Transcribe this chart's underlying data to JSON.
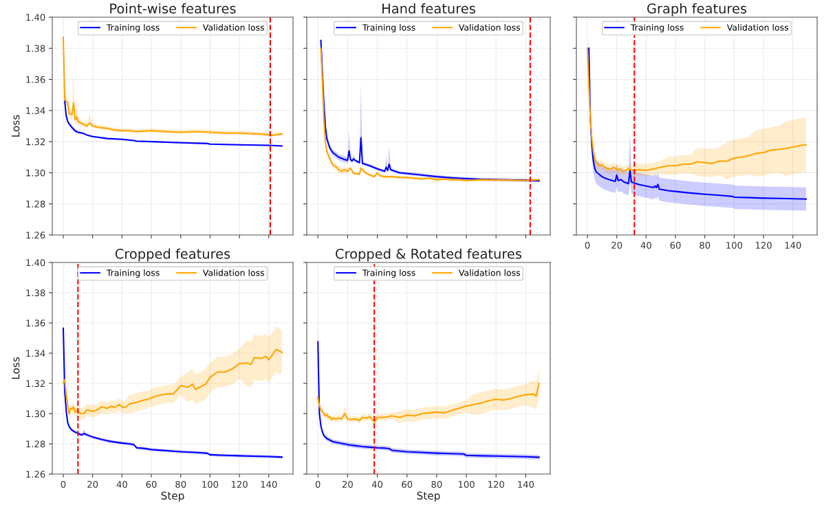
{
  "chart_data": [
    {
      "type": "line",
      "title": "Point-wise features",
      "ylabel": "Loss",
      "xlim": [
        -7.5,
        156.5
      ],
      "xticks": [
        {
          "value": 0,
          "label": null
        },
        {
          "value": 20,
          "label": null
        },
        {
          "value": 40,
          "label": null
        },
        {
          "value": 60,
          "label": null
        },
        {
          "value": 80,
          "label": null
        },
        {
          "value": 100,
          "label": null
        },
        {
          "value": 120,
          "label": null
        },
        {
          "value": 140,
          "label": null
        }
      ],
      "ylim": [
        1.26,
        1.4
      ],
      "yticks": [
        1.26,
        1.28,
        {
          "value": 1.3,
          "label": "1.30"
        },
        1.32,
        1.34,
        1.36,
        1.38,
        {
          "value": 1.4,
          "label": "1.40"
        }
      ],
      "tick_labels": "y",
      "grid": true,
      "legend": "top",
      "line_style": "solid",
      "ref_lines": [
        {
          "axis": "x",
          "value": 141,
          "color": "#ff0000",
          "line_style": "dashed"
        }
      ],
      "series": [
        {
          "name": "Training loss",
          "color": "#0000ff",
          "x": [
            1,
            2,
            3,
            4,
            6,
            8,
            10,
            13,
            16,
            20,
            30,
            40,
            48,
            50,
            60,
            80,
            98,
            100,
            120,
            140,
            149
          ],
          "values": [
            1.346,
            1.3366,
            1.333,
            1.3314,
            1.329,
            1.327,
            1.326,
            1.3255,
            1.3243,
            1.3233,
            1.322,
            1.3215,
            1.3207,
            1.3203,
            1.32,
            1.3193,
            1.3188,
            1.3184,
            1.318,
            1.3176,
            1.3172
          ],
          "lower": [
            1.345,
            1.3356,
            1.332,
            1.3304,
            1.328,
            1.326,
            1.325,
            1.325,
            1.3238,
            1.3228,
            1.3215,
            1.321,
            1.3202,
            1.3198,
            1.3195,
            1.3188,
            1.3183,
            1.3179,
            1.3175,
            1.3171,
            1.3167
          ],
          "upper": [
            1.347,
            1.3376,
            1.334,
            1.3324,
            1.33,
            1.328,
            1.327,
            1.326,
            1.3248,
            1.3238,
            1.3225,
            1.322,
            1.3212,
            1.3208,
            1.3205,
            1.3198,
            1.3193,
            1.3189,
            1.3185,
            1.3181,
            1.3177
          ]
        },
        {
          "name": "Validation loss",
          "color": "#ffa500",
          "x": [
            0,
            1,
            2,
            3,
            4,
            5,
            6,
            7,
            8,
            9,
            10,
            12,
            14,
            16,
            18,
            20,
            25,
            30,
            35,
            40,
            45,
            50,
            60,
            70,
            80,
            90,
            100,
            110,
            120,
            130,
            140,
            142,
            149
          ],
          "values": [
            1.387,
            1.347,
            1.346,
            1.345,
            1.338,
            1.3375,
            1.3375,
            1.345,
            1.334,
            1.336,
            1.333,
            1.332,
            1.331,
            1.33,
            1.332,
            1.33,
            1.329,
            1.3285,
            1.3275,
            1.327,
            1.327,
            1.3265,
            1.327,
            1.3265,
            1.326,
            1.3265,
            1.326,
            1.3255,
            1.3255,
            1.325,
            1.3245,
            1.324,
            1.325
          ],
          "lower": [
            1.384,
            1.344,
            1.343,
            1.342,
            1.335,
            1.3345,
            1.3345,
            1.342,
            1.331,
            1.333,
            1.33,
            1.331,
            1.33,
            1.329,
            1.331,
            1.329,
            1.328,
            1.3275,
            1.3265,
            1.326,
            1.326,
            1.3255,
            1.326,
            1.3255,
            1.325,
            1.3255,
            1.325,
            1.3245,
            1.3245,
            1.324,
            1.3235,
            1.323,
            1.324
          ],
          "upper": [
            1.39,
            1.35,
            1.35,
            1.349,
            1.342,
            1.3415,
            1.3415,
            1.367,
            1.338,
            1.344,
            1.337,
            1.334,
            1.333,
            1.332,
            1.338,
            1.332,
            1.3305,
            1.33,
            1.329,
            1.3285,
            1.3285,
            1.328,
            1.3285,
            1.328,
            1.3275,
            1.328,
            1.3275,
            1.327,
            1.327,
            1.3265,
            1.326,
            1.3255,
            1.3265
          ]
        }
      ]
    },
    {
      "type": "line",
      "title": "Hand features",
      "xlim": [
        -7.5,
        156.5
      ],
      "xticks": [
        {
          "value": 0,
          "label": null
        },
        {
          "value": 20,
          "label": null
        },
        {
          "value": 40,
          "label": null
        },
        {
          "value": 60,
          "label": null
        },
        {
          "value": 80,
          "label": null
        },
        {
          "value": 100,
          "label": null
        },
        {
          "value": 120,
          "label": null
        },
        {
          "value": 140,
          "label": null
        }
      ],
      "ylim": [
        1.26,
        1.4
      ],
      "yticks": [
        {
          "value": 1.26,
          "label": null
        },
        {
          "value": 1.28,
          "label": null
        },
        {
          "value": 1.3,
          "label": null
        },
        {
          "value": 1.32,
          "label": null
        },
        {
          "value": 1.34,
          "label": null
        },
        {
          "value": 1.36,
          "label": null
        },
        {
          "value": 1.38,
          "label": null
        },
        {
          "value": 1.4,
          "label": null
        }
      ],
      "tick_labels": false,
      "grid": true,
      "legend": "top",
      "line_style": "solid",
      "ref_lines": [
        {
          "axis": "x",
          "value": 143,
          "color": "#ff0000",
          "line_style": "dashed"
        }
      ],
      "series": [
        {
          "name": "Training loss",
          "color": "#0000ff",
          "x": [
            2,
            3,
            4,
            5,
            6,
            8,
            10,
            14,
            18,
            20,
            21,
            22,
            23,
            24,
            25,
            28,
            29,
            30,
            35,
            40,
            45,
            46,
            47,
            48,
            49,
            55,
            60,
            70,
            80,
            90,
            100,
            110,
            120,
            130,
            140,
            149
          ],
          "values": [
            1.385,
            1.365,
            1.345,
            1.33,
            1.322,
            1.316,
            1.313,
            1.31,
            1.3085,
            1.308,
            1.314,
            1.3085,
            1.3075,
            1.309,
            1.308,
            1.3065,
            1.3225,
            1.306,
            1.3045,
            1.3025,
            1.301,
            1.3035,
            1.3015,
            1.3055,
            1.302,
            1.3,
            1.2995,
            1.2985,
            1.2975,
            1.2968,
            1.2962,
            1.2958,
            1.2955,
            1.2953,
            1.2952,
            1.2948
          ],
          "lower": [
            1.383,
            1.363,
            1.343,
            1.328,
            1.32,
            1.314,
            1.311,
            1.308,
            1.3065,
            1.306,
            1.312,
            1.3075,
            1.3065,
            1.308,
            1.307,
            1.3055,
            1.3165,
            1.305,
            1.3035,
            1.3015,
            1.3,
            1.3025,
            1.3005,
            1.3035,
            1.301,
            1.299,
            1.2985,
            1.2975,
            1.2965,
            1.2958,
            1.2952,
            1.2948,
            1.2945,
            1.2943,
            1.2942,
            1.2938
          ],
          "upper": [
            1.387,
            1.367,
            1.347,
            1.332,
            1.324,
            1.318,
            1.315,
            1.312,
            1.3105,
            1.31,
            1.327,
            1.3095,
            1.3085,
            1.312,
            1.309,
            1.3075,
            1.358,
            1.307,
            1.3055,
            1.3035,
            1.302,
            1.3105,
            1.3025,
            1.3175,
            1.303,
            1.301,
            1.3005,
            1.2995,
            1.2985,
            1.2978,
            1.2972,
            1.2968,
            1.2965,
            1.2963,
            1.2962,
            1.2958
          ]
        },
        {
          "name": "Validation loss",
          "color": "#ffa500",
          "x": [
            2,
            3,
            4,
            5,
            6,
            8,
            10,
            12,
            14,
            16,
            18,
            20,
            22,
            24,
            26,
            28,
            29,
            32,
            35,
            38,
            40,
            42,
            45,
            50,
            55,
            60,
            65,
            70,
            75,
            80,
            85,
            90,
            95,
            100,
            110,
            120,
            130,
            140,
            149
          ],
          "values": [
            1.38,
            1.36,
            1.335,
            1.32,
            1.314,
            1.309,
            1.305,
            1.304,
            1.302,
            1.301,
            1.302,
            1.301,
            1.303,
            1.2995,
            1.2995,
            1.299,
            1.303,
            1.3,
            1.2985,
            1.2975,
            1.3,
            1.298,
            1.2975,
            1.2975,
            1.297,
            1.297,
            1.2965,
            1.296,
            1.2965,
            1.2955,
            1.296,
            1.2955,
            1.2955,
            1.295,
            1.2955,
            1.2953,
            1.2952,
            1.295,
            1.2955
          ],
          "lower": [
            1.378,
            1.358,
            1.333,
            1.318,
            1.312,
            1.307,
            1.303,
            1.302,
            1.3,
            1.299,
            1.3,
            1.299,
            1.302,
            1.2985,
            1.2985,
            1.298,
            1.302,
            1.299,
            1.2975,
            1.2965,
            1.299,
            1.297,
            1.2965,
            1.2965,
            1.296,
            1.296,
            1.2955,
            1.295,
            1.2955,
            1.2945,
            1.295,
            1.2945,
            1.2945,
            1.294,
            1.2945,
            1.2943,
            1.2942,
            1.294,
            1.2945
          ],
          "upper": [
            1.382,
            1.362,
            1.337,
            1.322,
            1.316,
            1.311,
            1.307,
            1.306,
            1.304,
            1.303,
            1.304,
            1.303,
            1.304,
            1.3005,
            1.3005,
            1.3,
            1.304,
            1.301,
            1.2995,
            1.2985,
            1.301,
            1.299,
            1.2985,
            1.2985,
            1.298,
            1.298,
            1.2975,
            1.297,
            1.2975,
            1.2965,
            1.297,
            1.2965,
            1.2965,
            1.296,
            1.2965,
            1.2963,
            1.2962,
            1.296,
            1.2965
          ]
        }
      ]
    },
    {
      "type": "line",
      "title": "Graph features",
      "xlim": [
        -7.5,
        156.5
      ],
      "xticks": [
        0,
        20,
        40,
        60,
        80,
        100,
        120,
        140
      ],
      "ylim": [
        1.26,
        1.4
      ],
      "yticks": [
        {
          "value": 1.26,
          "label": null
        },
        {
          "value": 1.28,
          "label": null
        },
        {
          "value": 1.3,
          "label": null
        },
        {
          "value": 1.32,
          "label": null
        },
        {
          "value": 1.34,
          "label": null
        },
        {
          "value": 1.36,
          "label": null
        },
        {
          "value": 1.38,
          "label": null
        },
        {
          "value": 1.4,
          "label": null
        }
      ],
      "tick_labels": "x",
      "grid": true,
      "legend": "top",
      "line_style": "solid",
      "ref_lines": [
        {
          "axis": "x",
          "value": 32,
          "color": "#ff0000",
          "line_style": "dashed"
        }
      ],
      "series": [
        {
          "name": "Training loss",
          "color": "#0000ff",
          "x": [
            1,
            2,
            3,
            4,
            5,
            6,
            8,
            10,
            12,
            15,
            19,
            20,
            21,
            23,
            25,
            28,
            29,
            30,
            35,
            40,
            45,
            46,
            47,
            48,
            49,
            55,
            60,
            70,
            80,
            90,
            99,
            100,
            110,
            120,
            130,
            140,
            149
          ],
          "values": [
            1.38,
            1.335,
            1.318,
            1.308,
            1.303,
            1.3005,
            1.299,
            1.2975,
            1.2965,
            1.2955,
            1.2945,
            1.2985,
            1.295,
            1.2955,
            1.294,
            1.293,
            1.3015,
            1.294,
            1.2925,
            1.2915,
            1.2905,
            1.2915,
            1.2905,
            1.2925,
            1.2895,
            1.2885,
            1.288,
            1.287,
            1.2862,
            1.2855,
            1.2848,
            1.2843,
            1.284,
            1.2837,
            1.2835,
            1.2833,
            1.2831
          ],
          "lower": [
            1.37,
            1.3275,
            1.3105,
            1.3005,
            1.2955,
            1.293,
            1.2915,
            1.29,
            1.289,
            1.288,
            1.287,
            1.291,
            1.2875,
            1.288,
            1.2865,
            1.2855,
            1.294,
            1.2865,
            1.285,
            1.284,
            1.283,
            1.284,
            1.283,
            1.285,
            1.282,
            1.281,
            1.2805,
            1.2795,
            1.2787,
            1.278,
            1.2773,
            1.2768,
            1.2765,
            1.2762,
            1.276,
            1.2758,
            1.2756
          ],
          "upper": [
            1.39,
            1.3425,
            1.3255,
            1.3155,
            1.3105,
            1.308,
            1.3065,
            1.305,
            1.304,
            1.303,
            1.302,
            1.3055,
            1.3025,
            1.303,
            1.3015,
            1.3005,
            1.3255,
            1.3015,
            1.3,
            1.299,
            1.298,
            1.299,
            1.298,
            1.3,
            1.297,
            1.296,
            1.2955,
            1.2945,
            1.2937,
            1.293,
            1.2923,
            1.2918,
            1.2915,
            1.2912,
            1.291,
            1.2908,
            1.2906
          ]
        },
        {
          "name": "Validation loss",
          "color": "#ffa500",
          "x": [
            0,
            1,
            2,
            3,
            4,
            5,
            6,
            8,
            10,
            12,
            14,
            16,
            18,
            20,
            22,
            24,
            26,
            28,
            30,
            32,
            35,
            40,
            45,
            50,
            55,
            60,
            65,
            70,
            75,
            80,
            85,
            90,
            95,
            100,
            105,
            110,
            115,
            120,
            125,
            130,
            135,
            140,
            145,
            149
          ],
          "values": [
            1.38,
            1.356,
            1.335,
            1.322,
            1.314,
            1.309,
            1.3065,
            1.3045,
            1.305,
            1.3035,
            1.3025,
            1.3025,
            1.3035,
            1.302,
            1.3025,
            1.301,
            1.3015,
            1.3025,
            1.302,
            1.3015,
            1.302,
            1.3015,
            1.3025,
            1.3035,
            1.3045,
            1.3045,
            1.3055,
            1.3055,
            1.307,
            1.3065,
            1.306,
            1.3075,
            1.3075,
            1.3095,
            1.31,
            1.311,
            1.3125,
            1.313,
            1.3145,
            1.315,
            1.3155,
            1.3165,
            1.3175,
            1.318
          ],
          "lower": [
            1.375,
            1.351,
            1.33,
            1.317,
            1.309,
            1.306,
            1.3035,
            1.3015,
            1.302,
            1.3005,
            1.2995,
            1.2995,
            1.3005,
            1.299,
            1.2995,
            1.298,
            1.2985,
            1.2995,
            1.299,
            1.2975,
            1.298,
            1.2975,
            1.2985,
            1.2995,
            1.2985,
            1.2985,
            1.2995,
            1.2995,
            1.298,
            1.2975,
            1.297,
            1.2985,
            1.2955,
            1.2975,
            1.298,
            1.299,
            1.2975,
            1.298,
            1.2995,
            1.3,
            1.298,
            1.299,
            1.3,
            1.3005
          ],
          "upper": [
            1.385,
            1.361,
            1.34,
            1.327,
            1.319,
            1.312,
            1.3095,
            1.3075,
            1.308,
            1.3065,
            1.3055,
            1.3055,
            1.3065,
            1.305,
            1.3055,
            1.304,
            1.3045,
            1.3055,
            1.305,
            1.3055,
            1.306,
            1.3055,
            1.3065,
            1.3075,
            1.3105,
            1.3105,
            1.3115,
            1.3115,
            1.316,
            1.3155,
            1.315,
            1.3165,
            1.3195,
            1.3215,
            1.322,
            1.323,
            1.3275,
            1.328,
            1.3295,
            1.33,
            1.333,
            1.334,
            1.335,
            1.3355
          ]
        }
      ]
    },
    {
      "type": "line",
      "title": "Cropped features",
      "xlabel": "Step",
      "ylabel": "Loss",
      "xlim": [
        -7.5,
        156.5
      ],
      "xticks": [
        0,
        20,
        40,
        60,
        80,
        100,
        120,
        140
      ],
      "ylim": [
        1.26,
        1.4
      ],
      "yticks": [
        1.26,
        1.28,
        {
          "value": 1.3,
          "label": "1.30"
        },
        1.32,
        1.34,
        1.36,
        1.38,
        {
          "value": 1.4,
          "label": "1.40"
        }
      ],
      "grid": true,
      "legend": "top",
      "line_style": "solid",
      "ref_lines": [
        {
          "axis": "x",
          "value": 10,
          "color": "#ff0000",
          "line_style": "dashed"
        }
      ],
      "series": [
        {
          "name": "Training loss",
          "color": "#0000ff",
          "x": [
            0,
            1,
            2,
            3,
            4,
            5,
            6,
            8,
            10,
            12,
            13,
            14,
            16,
            20,
            25,
            30,
            35,
            40,
            45,
            48,
            50,
            55,
            60,
            70,
            80,
            90,
            98,
            100,
            110,
            120,
            130,
            140,
            149
          ],
          "values": [
            1.3565,
            1.315,
            1.302,
            1.294,
            1.2915,
            1.29,
            1.289,
            1.2878,
            1.287,
            1.286,
            1.286,
            1.2868,
            1.286,
            1.2845,
            1.2832,
            1.282,
            1.2812,
            1.2805,
            1.28,
            1.2795,
            1.2774,
            1.277,
            1.2762,
            1.2755,
            1.2748,
            1.2743,
            1.2738,
            1.2728,
            1.2724,
            1.2721,
            1.2718,
            1.2716,
            1.2712
          ],
          "lower": [
            1.3525,
            1.314,
            1.301,
            1.293,
            1.2905,
            1.289,
            1.288,
            1.2868,
            1.286,
            1.285,
            1.285,
            1.2858,
            1.285,
            1.2835,
            1.2822,
            1.281,
            1.2802,
            1.2795,
            1.279,
            1.2785,
            1.2764,
            1.276,
            1.2752,
            1.2745,
            1.2738,
            1.2733,
            1.2728,
            1.2718,
            1.2714,
            1.2711,
            1.2708,
            1.2706,
            1.2702
          ],
          "upper": [
            1.361,
            1.316,
            1.303,
            1.295,
            1.2925,
            1.291,
            1.29,
            1.2888,
            1.288,
            1.287,
            1.287,
            1.2895,
            1.287,
            1.2855,
            1.2842,
            1.283,
            1.2822,
            1.2815,
            1.281,
            1.2805,
            1.2784,
            1.278,
            1.2772,
            1.2765,
            1.2758,
            1.2753,
            1.2748,
            1.2738,
            1.2734,
            1.2731,
            1.2728,
            1.2726,
            1.2722
          ]
        },
        {
          "name": "Validation loss",
          "color": "#ffa500",
          "x": [
            0,
            1,
            2,
            3,
            4,
            5,
            6,
            7,
            8,
            9,
            10,
            12,
            14,
            16,
            18,
            20,
            22,
            24,
            26,
            28,
            30,
            33,
            35,
            38,
            40,
            42,
            45,
            48,
            50,
            55,
            58,
            60,
            65,
            70,
            75,
            80,
            85,
            88,
            90,
            95,
            97,
            100,
            105,
            110,
            115,
            120,
            125,
            128,
            130,
            135,
            138,
            140,
            145,
            149
          ],
          "values": [
            1.3205,
            1.3225,
            1.3125,
            1.3055,
            1.3,
            1.3035,
            1.303,
            1.3045,
            1.301,
            1.302,
            1.3015,
            1.3,
            1.3,
            1.3025,
            1.302,
            1.3015,
            1.302,
            1.303,
            1.3045,
            1.304,
            1.3035,
            1.305,
            1.304,
            1.306,
            1.3045,
            1.304,
            1.3065,
            1.307,
            1.3075,
            1.309,
            1.3095,
            1.3105,
            1.312,
            1.313,
            1.313,
            1.3185,
            1.3175,
            1.3195,
            1.316,
            1.3185,
            1.3195,
            1.324,
            1.3275,
            1.3275,
            1.3295,
            1.333,
            1.3335,
            1.3325,
            1.337,
            1.3365,
            1.338,
            1.3355,
            1.3425,
            1.3405
          ],
          "lower": [
            1.3175,
            1.3195,
            1.3095,
            1.3025,
            1.297,
            1.3005,
            1.3,
            1.3015,
            1.298,
            1.299,
            1.2985,
            1.296,
            1.296,
            1.2985,
            1.298,
            1.2975,
            1.298,
            1.299,
            1.3005,
            1.3,
            1.2995,
            1.301,
            1.3,
            1.302,
            1.3005,
            1.3,
            1.3005,
            1.301,
            1.3015,
            1.303,
            1.3035,
            1.3045,
            1.306,
            1.307,
            1.307,
            1.3125,
            1.3075,
            1.3095,
            1.306,
            1.3085,
            1.3095,
            1.314,
            1.3175,
            1.3175,
            1.3195,
            1.323,
            1.3185,
            1.3175,
            1.322,
            1.3215,
            1.323,
            1.3205,
            1.3275,
            1.3255
          ],
          "upper": [
            1.3235,
            1.3255,
            1.3155,
            1.3085,
            1.303,
            1.3065,
            1.306,
            1.3075,
            1.304,
            1.305,
            1.3045,
            1.304,
            1.304,
            1.3065,
            1.306,
            1.3055,
            1.306,
            1.307,
            1.3085,
            1.308,
            1.3075,
            1.309,
            1.308,
            1.31,
            1.3085,
            1.308,
            1.3125,
            1.313,
            1.3135,
            1.315,
            1.3155,
            1.3165,
            1.318,
            1.319,
            1.319,
            1.3245,
            1.3275,
            1.3295,
            1.326,
            1.3285,
            1.3295,
            1.334,
            1.3375,
            1.3375,
            1.3395,
            1.343,
            1.3485,
            1.3475,
            1.352,
            1.3515,
            1.353,
            1.3505,
            1.3575,
            1.3555
          ]
        }
      ]
    },
    {
      "type": "line",
      "title": "Cropped & Rotated features",
      "xlabel": "Step",
      "xlim": [
        -7.5,
        156.5
      ],
      "xticks": [
        0,
        20,
        40,
        60,
        80,
        100,
        120,
        140
      ],
      "ylim": [
        1.26,
        1.4
      ],
      "yticks": [
        {
          "value": 1.26,
          "label": null
        },
        {
          "value": 1.28,
          "label": null
        },
        {
          "value": 1.3,
          "label": null
        },
        {
          "value": 1.32,
          "label": null
        },
        {
          "value": 1.34,
          "label": null
        },
        {
          "value": 1.36,
          "label": null
        },
        {
          "value": 1.38,
          "label": null
        },
        {
          "value": 1.4,
          "label": null
        }
      ],
      "tick_labels": "x",
      "grid": true,
      "legend": "top",
      "line_style": "solid",
      "ref_lines": [
        {
          "axis": "x",
          "value": 38,
          "color": "#ff0000",
          "line_style": "dashed"
        }
      ],
      "series": [
        {
          "name": "Training loss",
          "color": "#0000ff",
          "x": [
            0,
            1,
            2,
            3,
            4,
            5,
            6,
            8,
            10,
            15,
            20,
            25,
            30,
            35,
            40,
            45,
            48,
            50,
            60,
            70,
            80,
            90,
            98,
            100,
            110,
            120,
            130,
            140,
            149
          ],
          "values": [
            1.3475,
            1.3,
            1.292,
            1.288,
            1.2855,
            1.2845,
            1.2835,
            1.2825,
            1.2815,
            1.2805,
            1.2795,
            1.2788,
            1.2782,
            1.2778,
            1.2774,
            1.2772,
            1.2768,
            1.2757,
            1.2748,
            1.2743,
            1.2738,
            1.2735,
            1.2733,
            1.2724,
            1.2721,
            1.2719,
            1.2717,
            1.2715,
            1.2711
          ],
          "lower": [
            1.3445,
            1.2985,
            1.2905,
            1.2865,
            1.284,
            1.283,
            1.282,
            1.281,
            1.28,
            1.279,
            1.278,
            1.2773,
            1.2767,
            1.2763,
            1.2759,
            1.2757,
            1.2753,
            1.2742,
            1.2733,
            1.2728,
            1.2723,
            1.272,
            1.2718,
            1.2709,
            1.2706,
            1.2704,
            1.2702,
            1.27,
            1.2696
          ],
          "upper": [
            1.36,
            1.3015,
            1.2935,
            1.2895,
            1.287,
            1.286,
            1.285,
            1.284,
            1.283,
            1.282,
            1.281,
            1.2803,
            1.2797,
            1.2793,
            1.2789,
            1.2787,
            1.2783,
            1.2772,
            1.2763,
            1.2758,
            1.2753,
            1.275,
            1.2748,
            1.2739,
            1.2736,
            1.2734,
            1.2732,
            1.273,
            1.2726
          ]
        },
        {
          "name": "Validation loss",
          "color": "#ffa500",
          "x": [
            0,
            1,
            2,
            3,
            4,
            5,
            6,
            7,
            8,
            9,
            10,
            12,
            14,
            16,
            18,
            20,
            22,
            25,
            28,
            30,
            33,
            35,
            38,
            40,
            45,
            50,
            55,
            60,
            65,
            70,
            75,
            80,
            85,
            90,
            95,
            100,
            105,
            110,
            115,
            120,
            125,
            130,
            135,
            140,
            145,
            147,
            149
          ],
          "values": [
            1.311,
            1.305,
            1.3025,
            1.3015,
            1.3,
            1.2985,
            1.2995,
            1.2975,
            1.298,
            1.296,
            1.297,
            1.2965,
            1.297,
            1.2965,
            1.3,
            1.2965,
            1.296,
            1.2965,
            1.2955,
            1.2975,
            1.297,
            1.298,
            1.2945,
            1.2975,
            1.2975,
            1.2985,
            1.2975,
            1.299,
            1.2985,
            1.3,
            1.3005,
            1.301,
            1.3005,
            1.302,
            1.3035,
            1.305,
            1.306,
            1.307,
            1.3085,
            1.3095,
            1.309,
            1.31,
            1.3115,
            1.3125,
            1.313,
            1.3115,
            1.32
          ],
          "lower": [
            1.309,
            1.303,
            1.3005,
            1.2995,
            1.298,
            1.2965,
            1.2975,
            1.2955,
            1.296,
            1.294,
            1.295,
            1.2945,
            1.295,
            1.2945,
            1.298,
            1.2945,
            1.294,
            1.2945,
            1.2935,
            1.2955,
            1.295,
            1.296,
            1.2925,
            1.2955,
            1.2955,
            1.2965,
            1.2935,
            1.295,
            1.2945,
            1.296,
            1.2965,
            1.297,
            1.2965,
            1.298,
            1.2995,
            1.301,
            1.299,
            1.3,
            1.3015,
            1.3025,
            1.302,
            1.303,
            1.3045,
            1.3055,
            1.304,
            1.3025,
            1.31
          ],
          "upper": [
            1.313,
            1.307,
            1.3045,
            1.3035,
            1.302,
            1.3005,
            1.3015,
            1.2995,
            1.3,
            1.298,
            1.299,
            1.2985,
            1.299,
            1.2985,
            1.305,
            1.2985,
            1.298,
            1.2985,
            1.2975,
            1.2995,
            1.299,
            1.3,
            1.2965,
            1.2995,
            1.2995,
            1.3005,
            1.3015,
            1.303,
            1.3025,
            1.304,
            1.3045,
            1.305,
            1.3045,
            1.306,
            1.3075,
            1.309,
            1.313,
            1.314,
            1.3155,
            1.3165,
            1.316,
            1.317,
            1.3185,
            1.3195,
            1.322,
            1.3205,
            1.331
          ]
        }
      ]
    }
  ]
}
